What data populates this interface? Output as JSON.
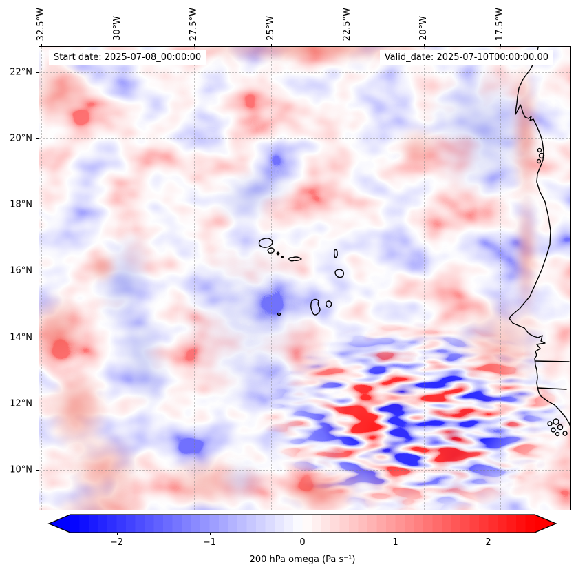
{
  "chart_data": {
    "type": "heatmap",
    "description": "Filled 2D map of 200 hPa vertical velocity (omega) over the tropical North Atlantic around Cape Verde and the West African coast; pale blue/red anomalies over most of the domain with strong small-scale red-blue mottling in the southeast near the coast.",
    "annotations": {
      "start_date": "Start date: 2025-07-08_00:00:00",
      "valid_date": "Valid_date: 2025-07-10T00:00:00.00"
    },
    "x_axis": {
      "side": "top",
      "unit": "degrees west",
      "tick_values": [
        32.5,
        30,
        27.5,
        25,
        22.5,
        20,
        17.5
      ],
      "tick_labels": [
        "32.5°W",
        "30°W",
        "27.5°W",
        "25°W",
        "22.5°W",
        "20°W",
        "17.5°W"
      ],
      "lim": [
        32.57,
        15.19
      ]
    },
    "y_axis": {
      "side": "left",
      "unit": "degrees north",
      "tick_values": [
        22,
        20,
        18,
        16,
        14,
        12,
        10
      ],
      "tick_labels": [
        "22°N",
        "20°N",
        "18°N",
        "16°N",
        "14°N",
        "12°N",
        "10°N"
      ],
      "lim": [
        22.77,
        8.77
      ]
    },
    "grid": true,
    "colorbar": {
      "orientation": "horizontal",
      "colormap": "bwr",
      "vmin": -2.5,
      "vmax": 2.5,
      "n_segments": 50,
      "extend": "both",
      "ticks": [
        -2,
        -1,
        0,
        1,
        2
      ],
      "tick_labels": [
        "−2",
        "−1",
        "0",
        "1",
        "2"
      ],
      "label": "200 hPa omega (Pa s⁻¹)"
    },
    "geography": [
      "Cape Verde archipelago coastline outlines",
      "West African coastline from Western Sahara to Guinea-Bissau with Cap-Vert peninsula, Gambia and Casamance rivers, Banc d'Arguin and Bijagós islets"
    ]
  }
}
